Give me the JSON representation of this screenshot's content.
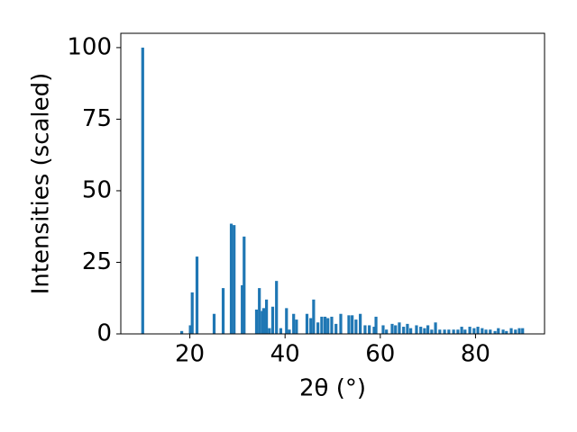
{
  "chart_data": {
    "type": "bar",
    "xlabel": "2θ (°)",
    "ylabel": "Intensities (scaled)",
    "x": [
      10.1,
      18.3,
      20.1,
      20.5,
      21.5,
      25.1,
      27.0,
      28.7,
      29.3,
      31.0,
      31.4,
      34.0,
      34.6,
      35.2,
      35.5,
      36.1,
      36.7,
      37.4,
      38.2,
      39.1,
      40.3,
      40.9,
      41.8,
      42.4,
      44.6,
      45.4,
      46.0,
      46.9,
      47.7,
      48.4,
      49.0,
      49.8,
      50.7,
      51.7,
      53.4,
      54.1,
      54.9,
      55.8,
      56.8,
      57.7,
      58.7,
      59.1,
      60.6,
      61.3,
      62.5,
      63.2,
      64.0,
      64.9,
      65.7,
      66.4,
      67.6,
      68.5,
      69.3,
      70.0,
      70.8,
      71.6,
      72.5,
      73.5,
      74.4,
      75.4,
      76.3,
      77.1,
      77.8,
      78.8,
      79.7,
      80.5,
      81.4,
      82.2,
      83.1,
      84.1,
      84.8,
      85.8,
      86.5,
      87.5,
      88.4,
      89.2,
      89.9
    ],
    "values": [
      100,
      1,
      3,
      14.5,
      27,
      7,
      16,
      38.5,
      38,
      17,
      34,
      8.5,
      16,
      8,
      9,
      12,
      2,
      9.5,
      18.5,
      2,
      9,
      1.5,
      7,
      5,
      7,
      5.5,
      12,
      4,
      6,
      6,
      5.5,
      6,
      3.5,
      7,
      6.5,
      6.5,
      5,
      7,
      3,
      3,
      2.5,
      6,
      3,
      1.5,
      3.5,
      3,
      4,
      2.5,
      3.5,
      2,
      3,
      2.5,
      2,
      3,
      1.5,
      4,
      1.5,
      1.5,
      1.5,
      1.5,
      1.5,
      2.5,
      1.5,
      2.5,
      2,
      2.5,
      2,
      1.5,
      1.5,
      1,
      2,
      1.5,
      1,
      2,
      1.5,
      2,
      2
    ],
    "color": "#1f77b4",
    "xlim": [
      5.5,
      94.5
    ],
    "xticks": [
      20,
      40,
      60,
      80
    ],
    "ylim": [
      0,
      105
    ],
    "yticks": [
      0,
      25,
      50,
      75,
      100
    ]
  }
}
